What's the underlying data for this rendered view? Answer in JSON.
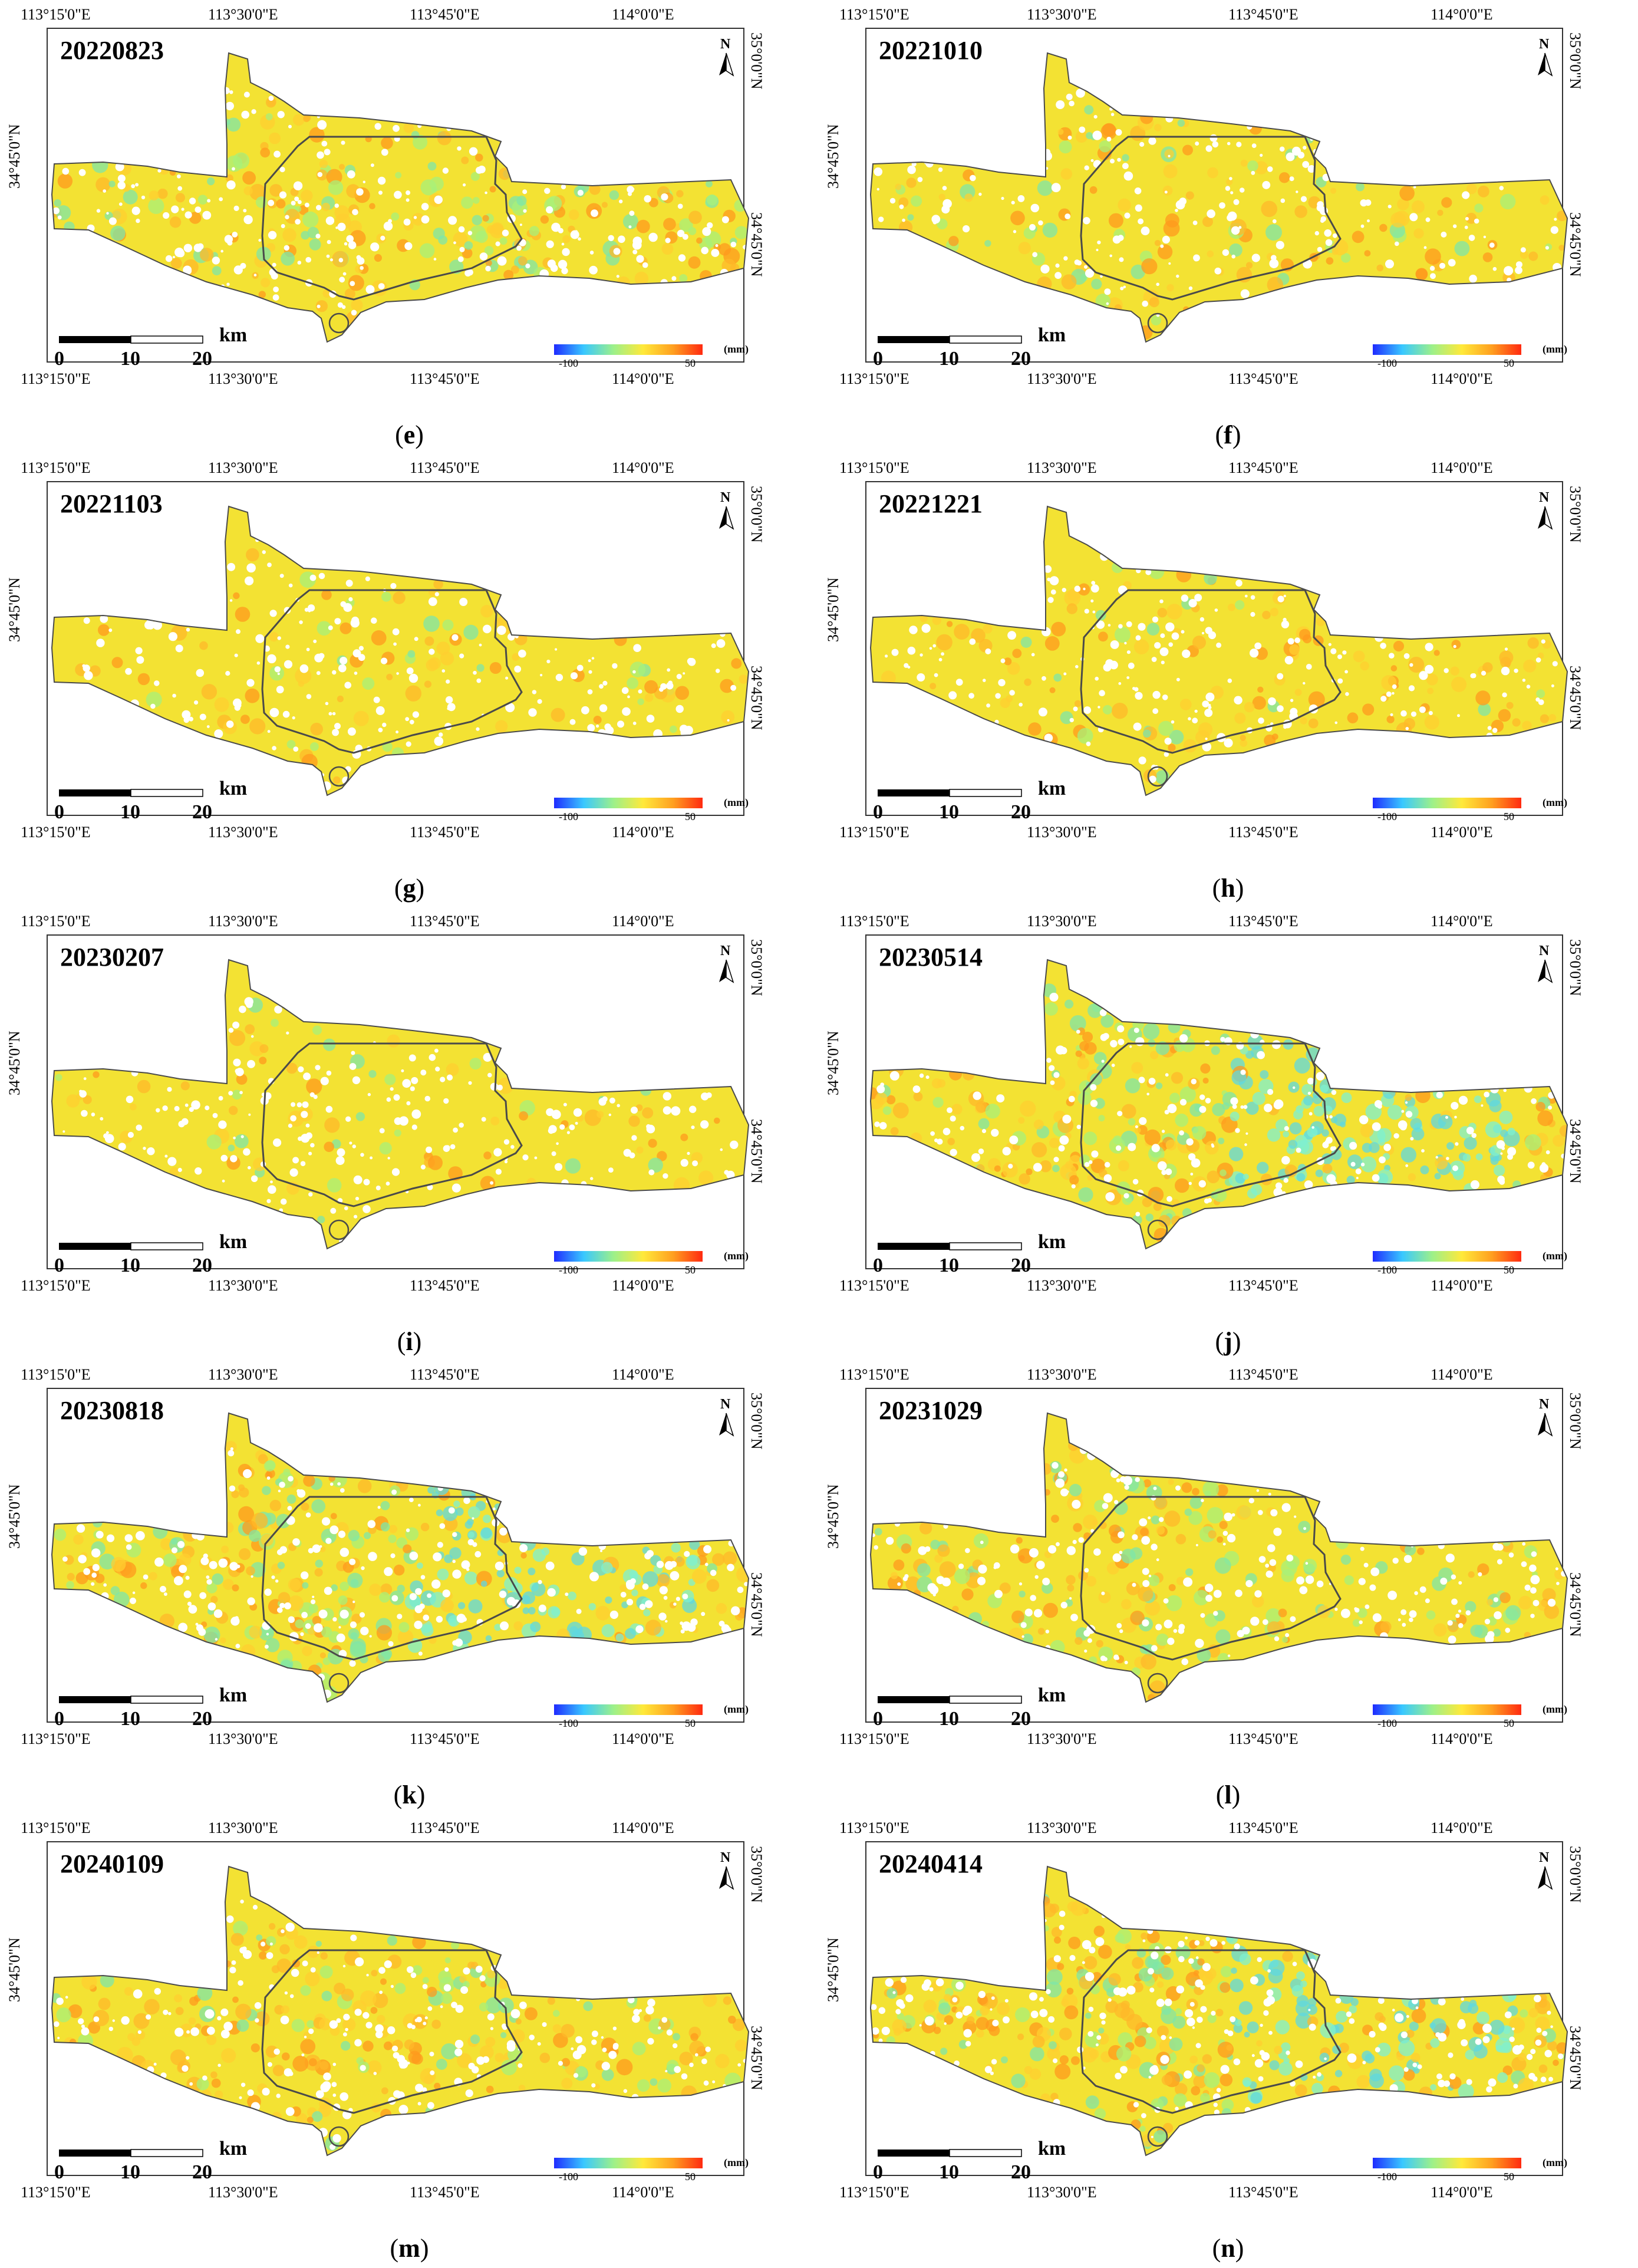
{
  "figure": {
    "axis_labels": {
      "lon_ticks": [
        "113°15'0\"E",
        "113°30'0\"E",
        "113°45'0\"E",
        "114°0'0\"E"
      ],
      "lat_left": "34°45'0\"N",
      "lat_right_lower": "34°45'0\"N",
      "lat_right_upper": "35°0'0\"N"
    },
    "north_label": "N",
    "scalebar": {
      "unit": "km",
      "ticks": [
        "0",
        "10",
        "20"
      ]
    },
    "legend": {
      "min": "-100",
      "max": "50",
      "unit": "(mm)",
      "colors": [
        "#1f2bff",
        "#39c8ff",
        "#9cf08a",
        "#ffe93a",
        "#ffa020",
        "#ff2a10"
      ]
    },
    "colors": {
      "base_fill": "#f3e233",
      "outline": "#4a4a4a",
      "frame": "#333333"
    },
    "panels": [
      {
        "date": "20220823",
        "letter": "e",
        "hot": [
          0.35,
          0.35,
          0.5,
          0.4,
          0.35
        ],
        "cool": [
          0.25,
          0.2,
          0.15,
          0.25,
          0.4
        ]
      },
      {
        "date": "20221010",
        "letter": "f",
        "hot": [
          0.25,
          0.25,
          0.3,
          0.3,
          0.2
        ],
        "cool": [
          0.15,
          0.1,
          0.1,
          0.15,
          0.2
        ]
      },
      {
        "date": "20221103",
        "letter": "g",
        "hot": [
          0.2,
          0.35,
          0.15,
          0.25,
          0.2
        ],
        "cool": [
          0.1,
          0.05,
          0.1,
          0.1,
          0.05
        ]
      },
      {
        "date": "20221221",
        "letter": "h",
        "hot": [
          0.35,
          0.35,
          0.2,
          0.45,
          0.35
        ],
        "cool": [
          0.05,
          0.05,
          0.1,
          0.05,
          0.05
        ]
      },
      {
        "date": "20230207",
        "letter": "i",
        "hot": [
          0.3,
          0.3,
          0.15,
          0.25,
          0.25
        ],
        "cool": [
          0.05,
          0.05,
          0.1,
          0.05,
          0.05
        ]
      },
      {
        "date": "20230514",
        "letter": "j",
        "hot": [
          0.5,
          0.5,
          0.45,
          0.1,
          0.9
        ],
        "cool": [
          0.25,
          0.25,
          0.55,
          0.95,
          0.2
        ]
      },
      {
        "date": "20230818",
        "letter": "k",
        "hot": [
          0.6,
          0.7,
          0.45,
          0.2,
          0.85
        ],
        "cool": [
          0.35,
          0.3,
          0.6,
          0.85,
          0.2
        ]
      },
      {
        "date": "20231029",
        "letter": "l",
        "hot": [
          0.45,
          0.55,
          0.35,
          0.3,
          0.55
        ],
        "cool": [
          0.3,
          0.2,
          0.35,
          0.4,
          0.15
        ]
      },
      {
        "date": "20240109",
        "letter": "m",
        "hot": [
          0.45,
          0.7,
          0.45,
          0.35,
          0.55
        ],
        "cool": [
          0.25,
          0.15,
          0.15,
          0.3,
          0.1
        ]
      },
      {
        "date": "20240414",
        "letter": "n",
        "hot": [
          0.6,
          0.65,
          0.6,
          0.25,
          0.85
        ],
        "cool": [
          0.45,
          0.25,
          0.4,
          0.85,
          0.25
        ]
      }
    ]
  }
}
